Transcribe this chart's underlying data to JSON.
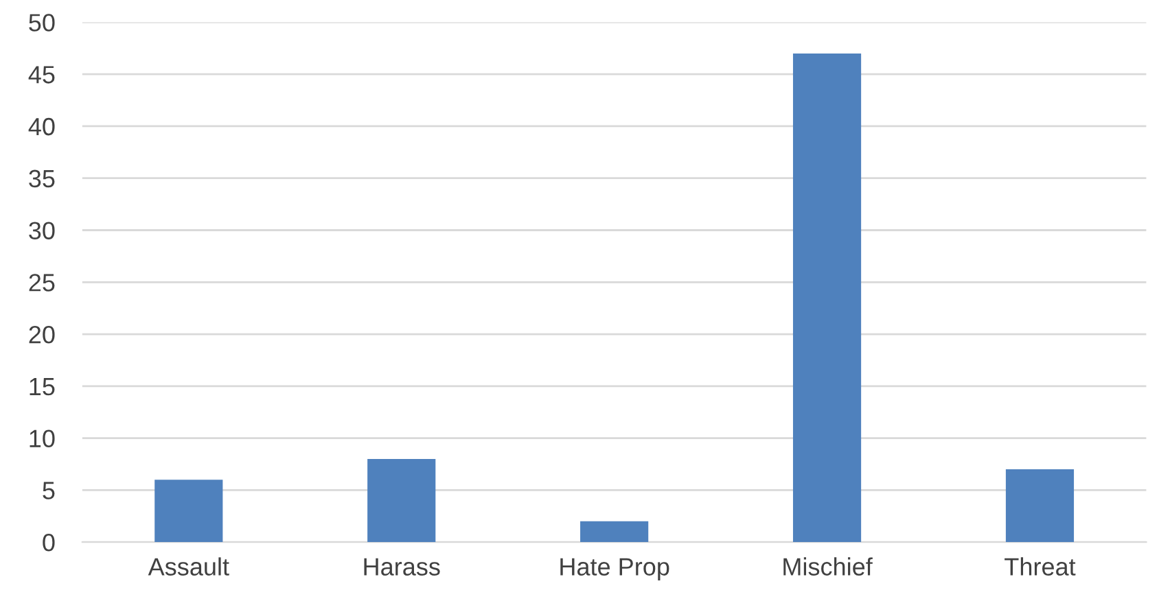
{
  "chart_data": {
    "type": "bar",
    "categories": [
      "Assault",
      "Harass",
      "Hate Prop",
      "Mischief",
      "Threat"
    ],
    "values": [
      6,
      8,
      2,
      47,
      7
    ],
    "color": "#4f81bd",
    "ylim": [
      0,
      50
    ],
    "yticks": [
      0,
      5,
      10,
      15,
      20,
      25,
      30,
      35,
      40,
      45,
      50
    ],
    "grid": "y",
    "legend": false
  }
}
